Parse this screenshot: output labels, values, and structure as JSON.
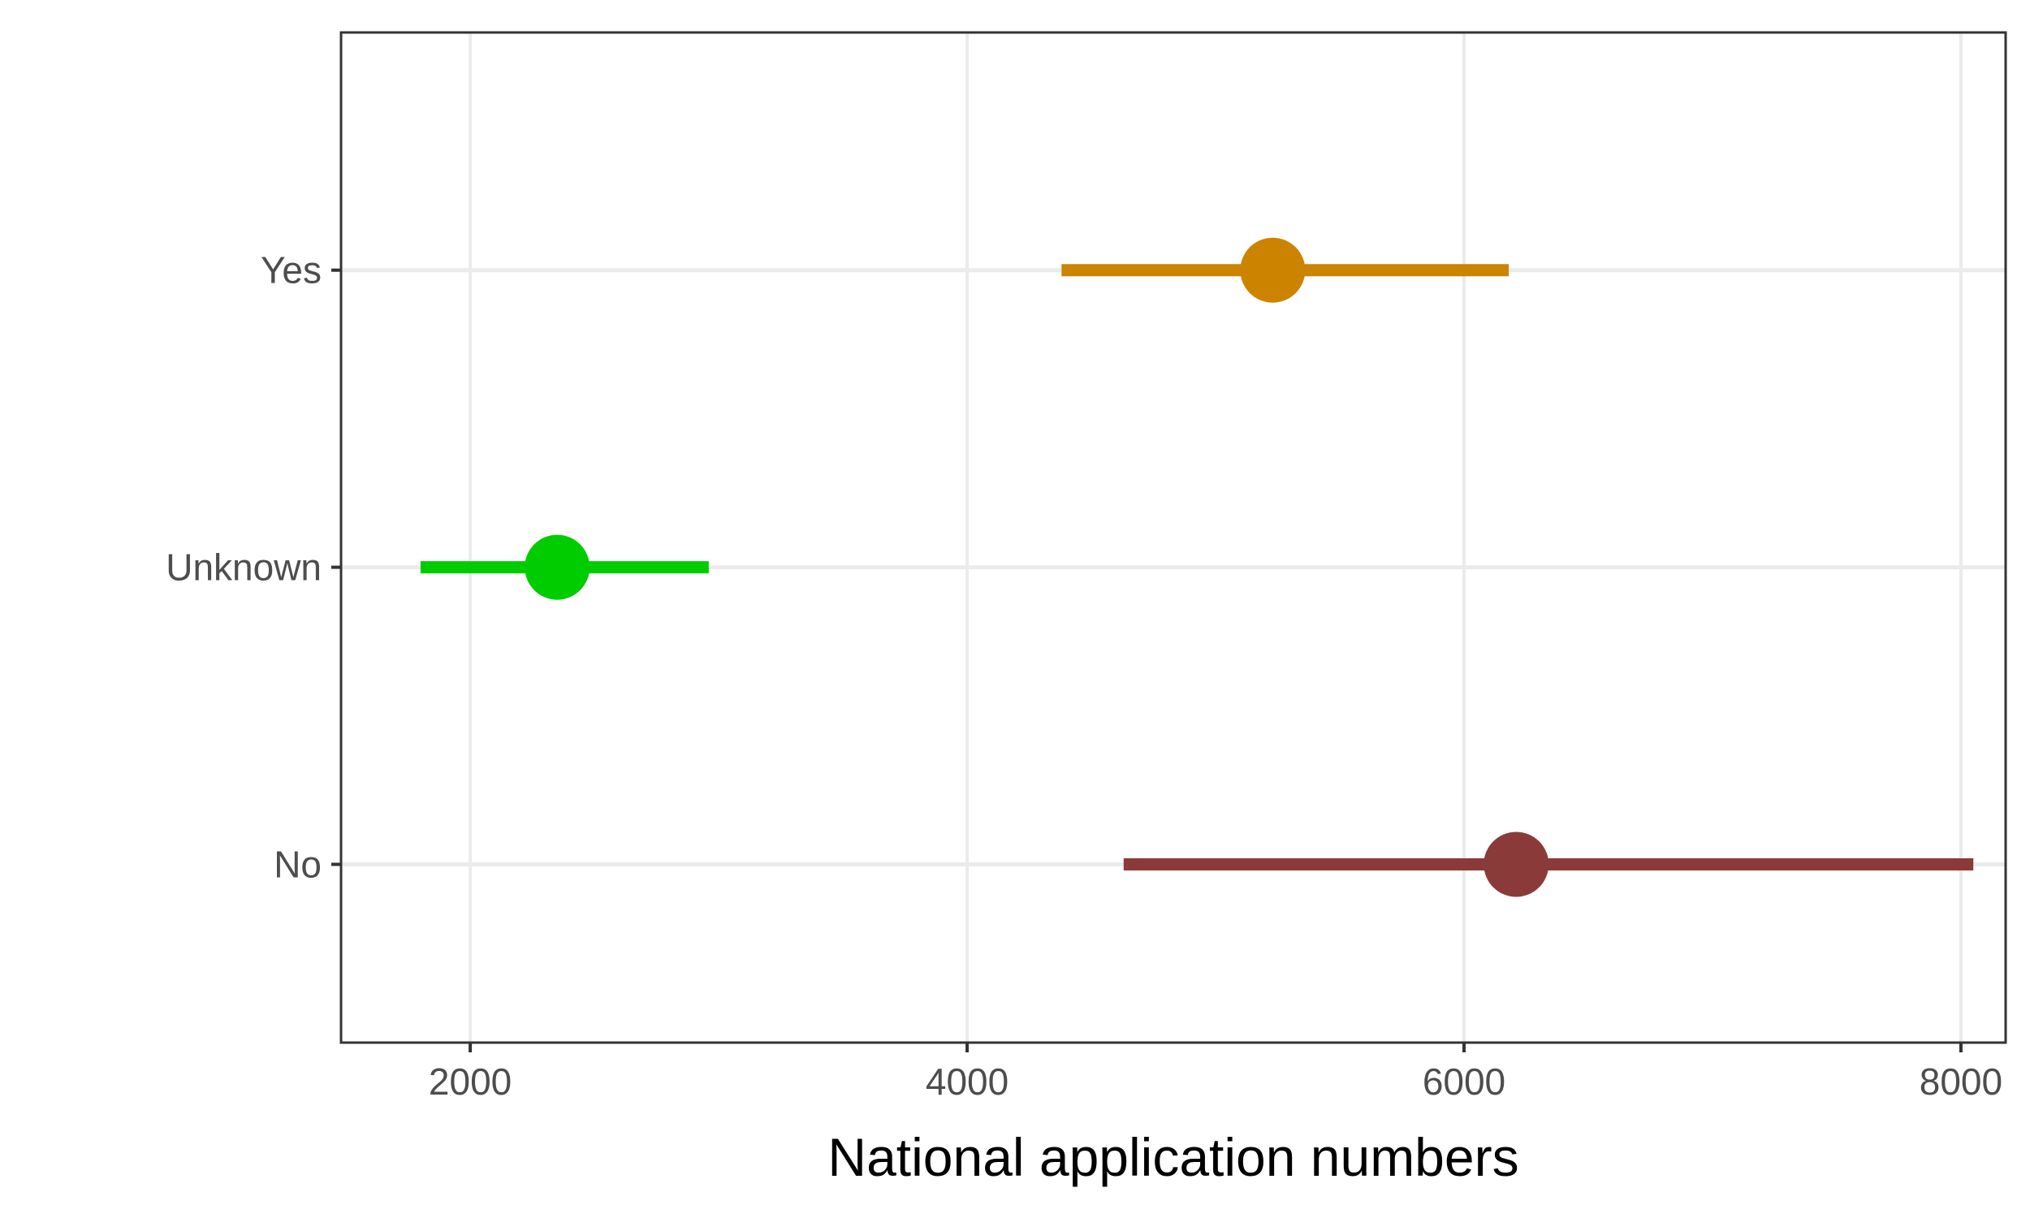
{
  "chart_data": {
    "type": "pointrange",
    "title": "",
    "xlabel": "National application numbers",
    "ylabel": "",
    "xlim": [
      1480,
      8180
    ],
    "x_ticks": [
      "2000",
      "4000",
      "6000",
      "8000"
    ],
    "x_tick_values": [
      2000,
      4000,
      6000,
      8000
    ],
    "categories": [
      "No",
      "Unknown",
      "Yes"
    ],
    "grid": true,
    "legend": "none",
    "series": [
      {
        "category": "Yes",
        "estimate": 5230,
        "low": 4380,
        "high": 6180,
        "color": "#CC8400"
      },
      {
        "category": "Unknown",
        "estimate": 2350,
        "low": 1800,
        "high": 2960,
        "color": "#00CC00"
      },
      {
        "category": "No",
        "estimate": 6210,
        "low": 4630,
        "high": 8050,
        "color": "#8B3A3A"
      }
    ]
  }
}
